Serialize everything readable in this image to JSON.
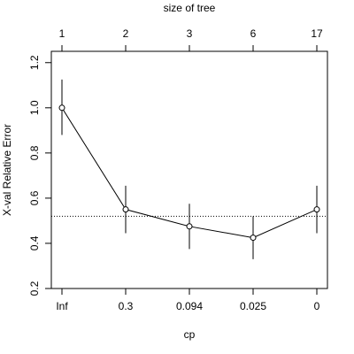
{
  "chart_data": {
    "type": "line",
    "xlabel": "cp",
    "ylabel": "X-val Relative Error",
    "top_axis_label": "size of tree",
    "x_tick_labels": [
      "Inf",
      "0.3",
      "0.094",
      "0.025",
      "0"
    ],
    "top_tick_labels": [
      "1",
      "2",
      "3",
      "6",
      "17"
    ],
    "y_ticks": [
      0.2,
      0.4,
      0.6,
      0.8,
      1.0,
      1.2
    ],
    "y_tick_labels": [
      "0.2",
      "0.4",
      "0.6",
      "0.8",
      "1.0",
      "1.2"
    ],
    "ylim": [
      0.2,
      1.25
    ],
    "series": [
      {
        "values": [
          1.0,
          0.55,
          0.475,
          0.425,
          0.55
        ],
        "error_low": [
          0.88,
          0.445,
          0.375,
          0.33,
          0.445
        ],
        "error_high": [
          1.125,
          0.655,
          0.575,
          0.52,
          0.655
        ]
      }
    ],
    "reference_line": {
      "y": 0.52,
      "style": "dotted"
    },
    "grid": false
  }
}
